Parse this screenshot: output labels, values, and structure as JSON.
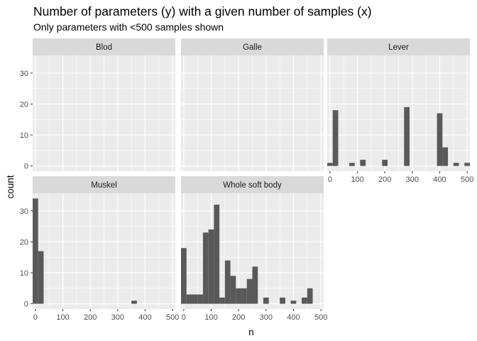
{
  "chart_data": {
    "type": "bar",
    "title": "Number of parameters (y) with a given number of samples (x)",
    "subtitle": "Only parameters with <500 samples shown",
    "xlabel": "n",
    "ylabel": "count",
    "x_ticks": [
      0,
      100,
      200,
      300,
      400,
      500
    ],
    "y_ticks": [
      0,
      10,
      20,
      30
    ],
    "xlim": [
      -10,
      510
    ],
    "ylim": [
      -1.7,
      35.7
    ],
    "bin_width": 20,
    "grid": true,
    "legend": "none",
    "bar_color": "#595959",
    "panel_background": "#ebebeb",
    "strip_background": "#d9d9d9",
    "panels": [
      {
        "name": "Blod",
        "bins": []
      },
      {
        "name": "Galle",
        "bins": []
      },
      {
        "name": "Lever",
        "bins": [
          {
            "x": 0,
            "count": 1
          },
          {
            "x": 20,
            "count": 18
          },
          {
            "x": 40,
            "count": 0
          },
          {
            "x": 60,
            "count": 0
          },
          {
            "x": 80,
            "count": 1
          },
          {
            "x": 100,
            "count": 0
          },
          {
            "x": 120,
            "count": 2
          },
          {
            "x": 140,
            "count": 0
          },
          {
            "x": 160,
            "count": 0
          },
          {
            "x": 180,
            "count": 0
          },
          {
            "x": 200,
            "count": 2
          },
          {
            "x": 220,
            "count": 0
          },
          {
            "x": 240,
            "count": 0
          },
          {
            "x": 260,
            "count": 0
          },
          {
            "x": 280,
            "count": 19
          },
          {
            "x": 300,
            "count": 0
          },
          {
            "x": 320,
            "count": 0
          },
          {
            "x": 340,
            "count": 0
          },
          {
            "x": 360,
            "count": 0
          },
          {
            "x": 380,
            "count": 0
          },
          {
            "x": 400,
            "count": 17
          },
          {
            "x": 420,
            "count": 6
          },
          {
            "x": 440,
            "count": 0
          },
          {
            "x": 460,
            "count": 1
          },
          {
            "x": 480,
            "count": 0
          },
          {
            "x": 500,
            "count": 1
          }
        ]
      },
      {
        "name": "Muskel",
        "bins": [
          {
            "x": 0,
            "count": 34
          },
          {
            "x": 20,
            "count": 17
          },
          {
            "x": 360,
            "count": 1
          }
        ]
      },
      {
        "name": "Whole soft body",
        "bins": [
          {
            "x": 0,
            "count": 18
          },
          {
            "x": 20,
            "count": 3
          },
          {
            "x": 40,
            "count": 3
          },
          {
            "x": 60,
            "count": 3
          },
          {
            "x": 80,
            "count": 23
          },
          {
            "x": 100,
            "count": 24
          },
          {
            "x": 120,
            "count": 32
          },
          {
            "x": 140,
            "count": 2
          },
          {
            "x": 160,
            "count": 14
          },
          {
            "x": 180,
            "count": 9
          },
          {
            "x": 200,
            "count": 5
          },
          {
            "x": 220,
            "count": 5
          },
          {
            "x": 240,
            "count": 8
          },
          {
            "x": 260,
            "count": 12
          },
          {
            "x": 280,
            "count": 0
          },
          {
            "x": 300,
            "count": 2
          },
          {
            "x": 320,
            "count": 0
          },
          {
            "x": 340,
            "count": 0
          },
          {
            "x": 360,
            "count": 2
          },
          {
            "x": 380,
            "count": 0
          },
          {
            "x": 400,
            "count": 1
          },
          {
            "x": 420,
            "count": 0
          },
          {
            "x": 440,
            "count": 2
          },
          {
            "x": 460,
            "count": 5
          }
        ]
      }
    ]
  }
}
